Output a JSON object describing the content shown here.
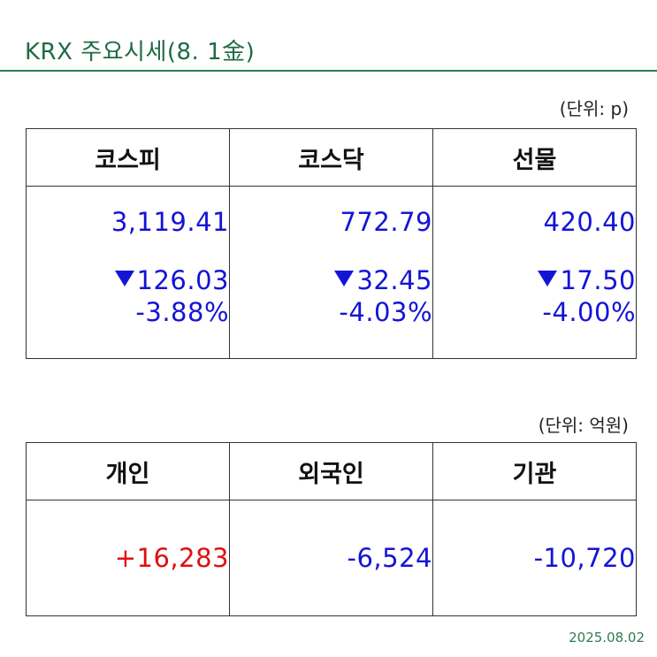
{
  "title": "KRX 주요시세(8. 1金)",
  "colors": {
    "title": "#1e6b45",
    "rule": "#2e7d52",
    "down": "#1414d6",
    "up": "#e01010"
  },
  "index_table": {
    "unit": "(단위: p)",
    "headers": [
      "코스피",
      "코스닥",
      "선물"
    ],
    "cells": [
      {
        "value": "3,119.41",
        "direction_icon": "down-triangle-icon",
        "change": "126.03",
        "percent": "-3.88%"
      },
      {
        "value": "772.79",
        "direction_icon": "down-triangle-icon",
        "change": "32.45",
        "percent": "-4.03%"
      },
      {
        "value": "420.40",
        "direction_icon": "down-triangle-icon",
        "change": "17.50",
        "percent": "-4.00%"
      }
    ]
  },
  "investor_table": {
    "unit": "(단위: 억원)",
    "headers": [
      "개인",
      "외국인",
      "기관"
    ],
    "values": [
      "+16,283",
      "-6,524",
      "-10,720"
    ]
  },
  "date": "2025.08.02"
}
